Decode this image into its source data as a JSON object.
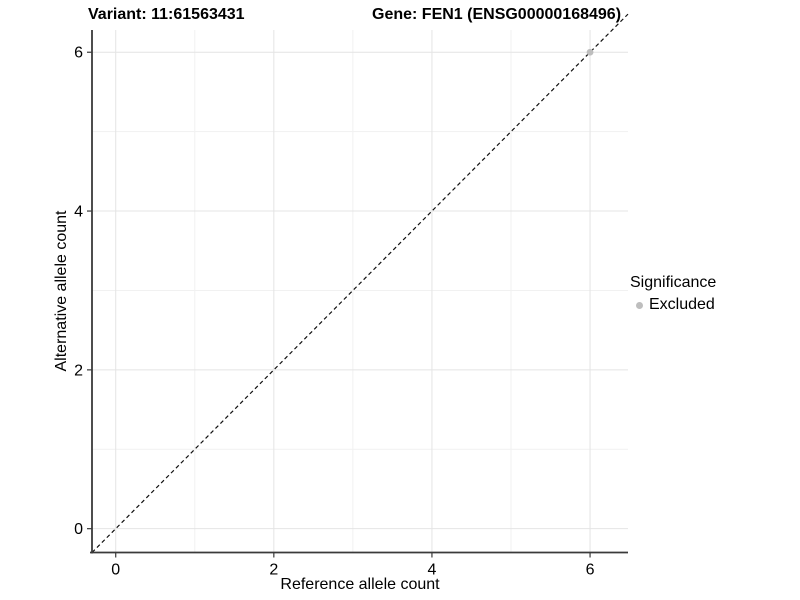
{
  "chart_data": {
    "type": "scatter",
    "titles": {
      "left": "Variant: 11:61563431",
      "right": "Gene: FEN1 (ENSG00000168496)"
    },
    "xlabel": "Reference allele count",
    "ylabel": "Alternative allele count",
    "xticks": [
      0,
      2,
      4,
      6
    ],
    "yticks": [
      0,
      2,
      4,
      6
    ],
    "xminor": [
      1,
      3,
      5
    ],
    "yminor": [
      1,
      3,
      5
    ],
    "xlim": [
      -0.3,
      6.48
    ],
    "ylim": [
      -0.3,
      6.28
    ],
    "grid": true,
    "identity_line": {
      "style": "dashed",
      "from": [
        -0.3,
        -0.3
      ],
      "to": [
        6.48,
        6.48
      ]
    },
    "points": [
      {
        "x": 6,
        "y": 6,
        "significance": "Excluded"
      }
    ],
    "legend": {
      "title": "Significance",
      "position": "right",
      "entries": [
        {
          "label": "Excluded",
          "color": "#bebebe"
        }
      ]
    },
    "colors": {
      "point": "#bebebe",
      "grid_major": "#e4e4e4",
      "grid_minor": "#f1f1f1",
      "axis": "#3a3a3a",
      "identity_line": "#111111",
      "background": "#ffffff"
    }
  }
}
